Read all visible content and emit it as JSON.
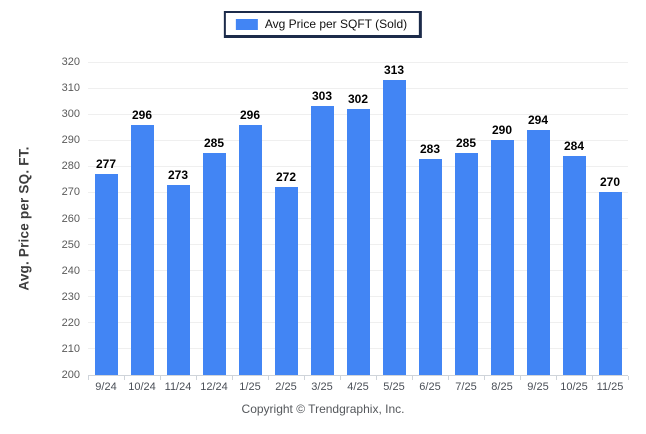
{
  "legend": {
    "label": "Avg Price per SQFT (Sold)",
    "swatch_color": "#4285f4"
  },
  "footer": {
    "text": "Copyright © Trendgraphix, Inc."
  },
  "chart_data": {
    "type": "bar",
    "categories": [
      "9/24",
      "10/24",
      "11/24",
      "12/24",
      "1/25",
      "2/25",
      "3/25",
      "4/25",
      "5/25",
      "6/25",
      "7/25",
      "8/25",
      "9/25",
      "10/25",
      "11/25"
    ],
    "values": [
      277,
      296,
      273,
      285,
      296,
      272,
      303,
      302,
      313,
      283,
      285,
      290,
      294,
      284,
      270
    ],
    "series_name": "Avg Price per SQFT (Sold)",
    "title": "",
    "xlabel": "",
    "ylabel": "Avg. Price per SQ. FT.",
    "ylim": [
      200,
      320
    ],
    "ytick_step": 10,
    "bar_color": "#4285f4",
    "grid": true,
    "legend_position": "top",
    "value_labels_shown": true
  }
}
